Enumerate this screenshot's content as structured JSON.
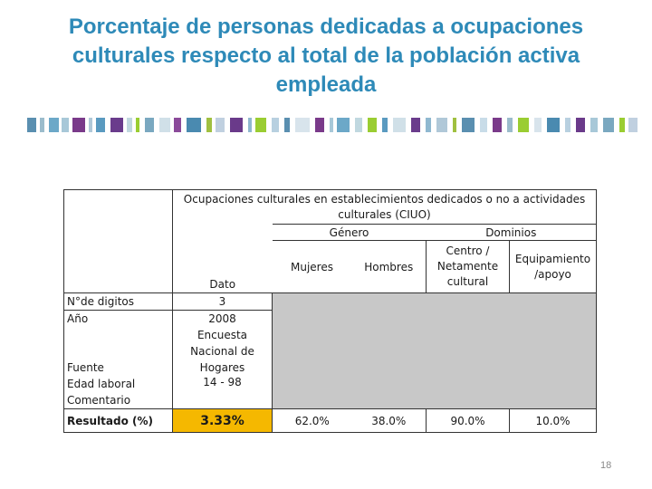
{
  "slide": {
    "title_lines": [
      "Porcentaje de personas dedicadas a ocupaciones",
      "culturales respecto al total de la población activa",
      "empleada"
    ],
    "page_number": "18"
  },
  "table": {
    "header_main": "Ocupaciones culturales en establecimientos dedicados o no a actividades culturales (CIUO)",
    "header_genero": "Género",
    "header_dominios": "Dominios",
    "dato_label": "Dato",
    "col_mujeres": "Mujeres",
    "col_hombres": "Hombres",
    "col_centro": "Centro / Netamente cultural",
    "col_equip": "Equipamiento /apoyo",
    "row_digitos_label": "N°de digitos",
    "row_digitos_value": "3",
    "row_anio_label": "Año",
    "row_anio_value": "2008",
    "row_fuente_label": "Fuente",
    "row_fuente_value": "Encuesta Nacional de Hogares",
    "row_edad_label": "Edad laboral",
    "row_edad_value": "14 - 98",
    "row_comentario_label": "Comentario",
    "row_resultado_label": "Resultado (%)",
    "row_resultado_value": "3.33%",
    "res_mujeres": "62.0%",
    "res_hombres": "38.0%",
    "res_centro": "90.0%",
    "res_equip": "10.0%"
  },
  "colors": {
    "title": "#2e8ab8",
    "highlight": "#f5b800",
    "shading": "#c8c8c8"
  }
}
